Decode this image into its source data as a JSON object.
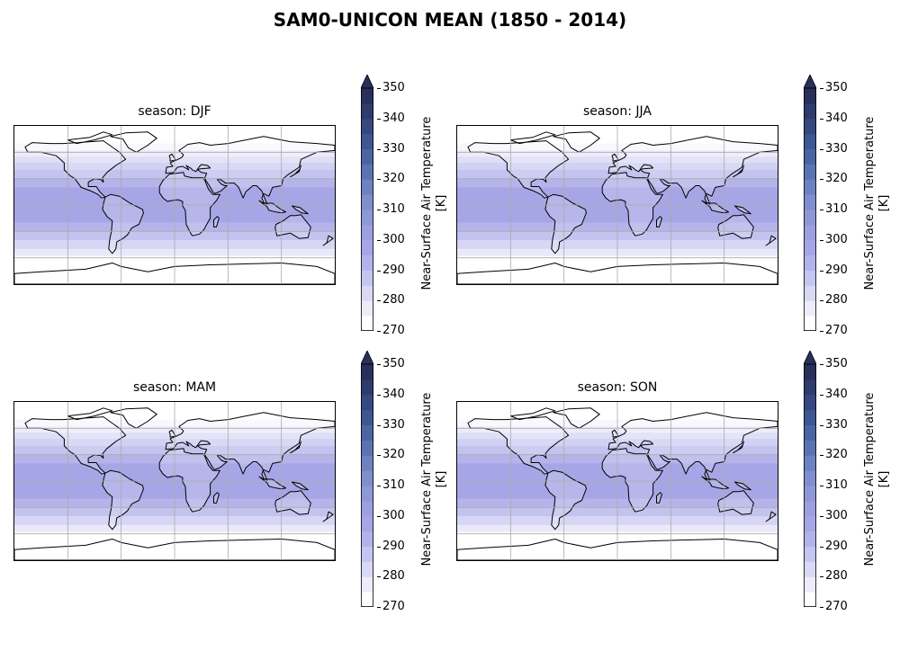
{
  "title": "SAM0-UNICON MEAN (1850 - 2014)",
  "panels": [
    {
      "season": "season: DJF"
    },
    {
      "season": "season: JJA"
    },
    {
      "season": "season: MAM"
    },
    {
      "season": "season: SON"
    }
  ],
  "colorbar": {
    "label_line1": "Near-Surface Air Temperature",
    "label_line2": "[K]",
    "ticks": [
      "350",
      "340",
      "330",
      "320",
      "310",
      "300",
      "290",
      "280",
      "270"
    ],
    "vmin": 270,
    "vmax": 350,
    "extend": "max",
    "colors": [
      "#ffffff",
      "#ececfa",
      "#d9d9f6",
      "#c5c5f1",
      "#b3b3ec",
      "#a6a6e6",
      "#9c9fe0",
      "#8f98d6",
      "#7f8ecc",
      "#6d82c0",
      "#5a74b2",
      "#4b65a3",
      "#3e5691",
      "#36487f",
      "#2f3b6c",
      "#28305a"
    ]
  },
  "gridlines": true,
  "projection": "PlateCarree"
}
